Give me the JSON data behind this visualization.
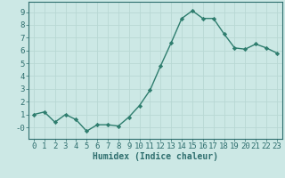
{
  "x": [
    0,
    1,
    2,
    3,
    4,
    5,
    6,
    7,
    8,
    9,
    10,
    11,
    12,
    13,
    14,
    15,
    16,
    17,
    18,
    19,
    20,
    21,
    22,
    23
  ],
  "y": [
    1.0,
    1.2,
    0.4,
    1.0,
    0.6,
    -0.3,
    0.2,
    0.2,
    0.1,
    0.8,
    1.7,
    2.9,
    4.8,
    6.6,
    8.5,
    9.1,
    8.5,
    8.5,
    7.3,
    6.2,
    6.1,
    6.5,
    6.2,
    5.8
  ],
  "line_color": "#2e7d6e",
  "marker": "D",
  "markersize": 2.2,
  "linewidth": 1.0,
  "bg_color": "#cce8e5",
  "grid_color": "#b8d8d4",
  "xlabel": "Humidex (Indice chaleur)",
  "xlabel_fontsize": 7,
  "tick_color": "#2e6e6e",
  "tick_fontsize": 6.5,
  "xlim": [
    -0.5,
    23.5
  ],
  "ylim": [
    -0.9,
    9.8
  ],
  "yticks": [
    0,
    1,
    2,
    3,
    4,
    5,
    6,
    7,
    8,
    9
  ],
  "ytick_labels": [
    "-0",
    "1",
    "2",
    "3",
    "4",
    "5",
    "6",
    "7",
    "8",
    "9"
  ],
  "xticks": [
    0,
    1,
    2,
    3,
    4,
    5,
    6,
    7,
    8,
    9,
    10,
    11,
    12,
    13,
    14,
    15,
    16,
    17,
    18,
    19,
    20,
    21,
    22,
    23
  ]
}
